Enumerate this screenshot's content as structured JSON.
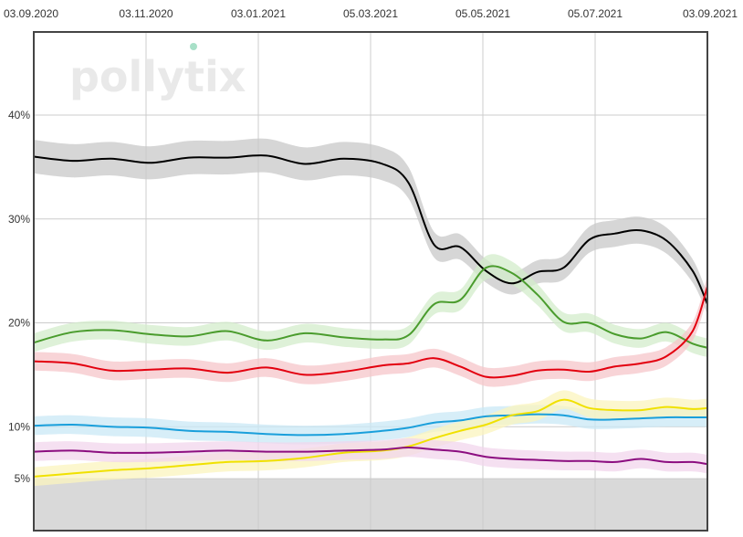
{
  "logo": {
    "text": "pollytix",
    "dot_color": "#a8e0c8"
  },
  "chart_data": {
    "type": "line",
    "title": "",
    "xlabel": "",
    "ylabel": "",
    "x_ticks": [
      "03.09.2020",
      "03.11.2020",
      "03.01.2021",
      "05.03.2021",
      "05.05.2021",
      "05.07.2021",
      "03.09.2021"
    ],
    "x_range": [
      "2020-09-03",
      "2021-09-03"
    ],
    "y_ticks": [
      {
        "value": 5,
        "label": "5%"
      },
      {
        "value": 10,
        "label": "10%"
      },
      {
        "value": 20,
        "label": "20%"
      },
      {
        "value": 30,
        "label": "30%"
      },
      {
        "value": 40,
        "label": "40%"
      }
    ],
    "ylim": [
      0,
      48
    ],
    "grid": true,
    "threshold_band": {
      "below": 5,
      "color": "#d9d9d9"
    },
    "x": [
      "2020-09-03",
      "2020-09-24",
      "2020-10-15",
      "2020-11-05",
      "2020-11-26",
      "2020-12-17",
      "2021-01-07",
      "2021-01-28",
      "2021-02-18",
      "2021-03-11",
      "2021-03-25",
      "2021-04-08",
      "2021-04-22",
      "2021-05-06",
      "2021-05-20",
      "2021-06-03",
      "2021-06-17",
      "2021-07-01",
      "2021-07-15",
      "2021-07-29",
      "2021-08-12",
      "2021-08-26",
      "2021-09-03"
    ],
    "series": [
      {
        "color": "#000000",
        "band_color": "#c8c8c8",
        "values": [
          36.0,
          35.6,
          35.8,
          35.4,
          35.9,
          35.9,
          36.1,
          35.3,
          35.8,
          35.3,
          33.5,
          27.5,
          27.3,
          25.0,
          23.8,
          24.9,
          25.3,
          28.0,
          28.6,
          28.9,
          27.9,
          25.0,
          21.8
        ]
      },
      {
        "color": "#4a9c2d",
        "band_color": "#d3eccb",
        "values": [
          18.1,
          19.1,
          19.3,
          18.9,
          18.7,
          19.2,
          18.3,
          19.0,
          18.6,
          18.4,
          18.8,
          21.8,
          22.2,
          25.3,
          24.8,
          22.7,
          20.1,
          20.0,
          18.9,
          18.5,
          19.1,
          18.0,
          17.6
        ]
      },
      {
        "color": "#e3000f",
        "band_color": "#f5c6c9",
        "values": [
          16.3,
          16.1,
          15.4,
          15.5,
          15.6,
          15.2,
          15.7,
          15.0,
          15.3,
          15.9,
          16.1,
          16.6,
          15.8,
          14.8,
          14.9,
          15.4,
          15.5,
          15.3,
          15.8,
          16.1,
          16.8,
          19.2,
          23.5
        ]
      },
      {
        "color": "#1a9fdb",
        "band_color": "#c9e8f6",
        "values": [
          10.1,
          10.2,
          10.0,
          9.9,
          9.6,
          9.5,
          9.3,
          9.2,
          9.3,
          9.6,
          9.9,
          10.4,
          10.6,
          11.0,
          11.1,
          11.2,
          11.1,
          10.7,
          10.7,
          10.8,
          10.9,
          10.9,
          10.9
        ]
      },
      {
        "color": "#f0e100",
        "band_color": "#fbf4be",
        "values": [
          5.2,
          5.5,
          5.8,
          6.0,
          6.3,
          6.6,
          6.7,
          7.0,
          7.5,
          7.7,
          8.1,
          8.9,
          9.6,
          10.2,
          11.1,
          11.5,
          12.6,
          11.8,
          11.6,
          11.6,
          11.9,
          11.7,
          11.8
        ]
      },
      {
        "color": "#8c0e80",
        "band_color": "#f1d6ec",
        "values": [
          7.6,
          7.7,
          7.5,
          7.5,
          7.6,
          7.7,
          7.6,
          7.6,
          7.7,
          7.8,
          8.0,
          7.8,
          7.6,
          7.1,
          6.9,
          6.8,
          6.7,
          6.7,
          6.6,
          6.9,
          6.6,
          6.6,
          6.4
        ]
      }
    ]
  }
}
